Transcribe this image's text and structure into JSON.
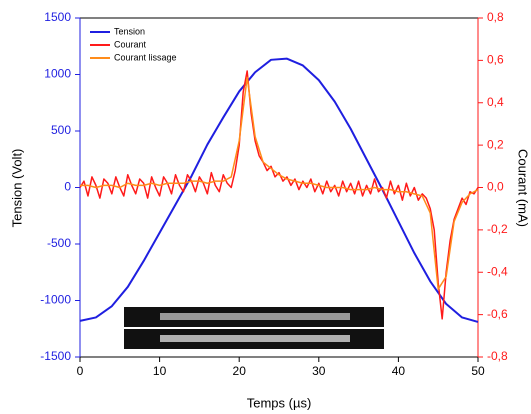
{
  "chart_data": {
    "type": "line",
    "xlabel": "Temps (µs)",
    "ylabel": "Tension (Volt)",
    "y2label": "Courant (mA)",
    "xlim": [
      0,
      50
    ],
    "xticks": [
      0,
      10,
      20,
      30,
      40,
      50
    ],
    "ylim": [
      -1500,
      1500
    ],
    "yticks": [
      -1500,
      -1000,
      -500,
      0,
      500,
      1000,
      1500
    ],
    "y2lim": [
      -0.8,
      0.8
    ],
    "y2ticks": [
      {
        "value": -0.8,
        "label": "-0,8"
      },
      {
        "value": -0.6,
        "label": "-0,6"
      },
      {
        "value": -0.4,
        "label": "-0,4"
      },
      {
        "value": -0.2,
        "label": "-0,2"
      },
      {
        "value": 0,
        "label": "0,0"
      },
      {
        "value": 0.2,
        "label": "0,2"
      },
      {
        "value": 0.4,
        "label": "0,4"
      },
      {
        "value": 0.6,
        "label": "0,6"
      },
      {
        "value": 0.8,
        "label": "0,8"
      }
    ],
    "legend": "top-left",
    "series": [
      {
        "name": "Tension",
        "color": "#1f1fe0",
        "x": [
          0,
          2,
          4,
          6,
          8,
          10,
          12,
          14,
          16,
          18,
          20,
          22,
          24,
          26,
          28,
          30,
          32,
          34,
          36,
          38,
          40,
          42,
          44,
          46,
          48,
          50
        ],
        "values": [
          -1180,
          -1150,
          -1050,
          -880,
          -650,
          -400,
          -150,
          100,
          380,
          620,
          850,
          1020,
          1130,
          1140,
          1080,
          950,
          760,
          520,
          250,
          -20,
          -300,
          -580,
          -830,
          -1030,
          -1150,
          -1190
        ]
      },
      {
        "name": "Courant",
        "color": "#ff1a1a",
        "axis": "y2",
        "x": [
          0,
          0.5,
          1,
          1.5,
          2,
          2.5,
          3,
          3.5,
          4,
          4.5,
          5,
          5.5,
          6,
          6.5,
          7,
          7.5,
          8,
          8.5,
          9,
          9.5,
          10,
          10.5,
          11,
          11.5,
          12,
          12.5,
          13,
          13.5,
          14,
          14.5,
          15,
          15.5,
          16,
          16.5,
          17,
          17.5,
          18,
          18.5,
          19,
          19.5,
          20,
          20.5,
          21,
          21.5,
          22,
          22.5,
          23,
          23.5,
          24,
          24.5,
          25,
          25.5,
          26,
          26.5,
          27,
          27.5,
          28,
          28.5,
          29,
          29.5,
          30,
          30.5,
          31,
          31.5,
          32,
          32.5,
          33,
          33.5,
          34,
          34.5,
          35,
          35.5,
          36,
          36.5,
          37,
          37.5,
          38,
          38.5,
          39,
          39.5,
          40,
          40.5,
          41,
          41.5,
          42,
          42.5,
          43,
          43.5,
          44,
          44.5,
          45,
          45.5,
          46,
          46.5,
          47,
          47.5,
          48,
          48.5,
          49,
          49.5,
          50
        ],
        "values": [
          0,
          0.03,
          -0.04,
          0.05,
          0.01,
          -0.05,
          0.04,
          0.02,
          -0.03,
          0.05,
          0,
          -0.04,
          0.06,
          0.01,
          -0.03,
          0.04,
          0.02,
          -0.05,
          0.05,
          0,
          -0.04,
          0.05,
          0.02,
          -0.03,
          0.06,
          0.01,
          -0.02,
          0.06,
          0.03,
          -0.02,
          0.05,
          0.02,
          -0.03,
          0.07,
          0.01,
          -0.02,
          0.06,
          0.02,
          0,
          0.08,
          0.2,
          0.45,
          0.55,
          0.35,
          0.22,
          0.15,
          0.12,
          0.08,
          0.1,
          0.05,
          0.07,
          0.03,
          0.05,
          0.01,
          0.04,
          -0.01,
          0.03,
          0,
          0.04,
          -0.02,
          0.02,
          -0.03,
          0.03,
          -0.02,
          0.01,
          -0.04,
          0.03,
          -0.02,
          0.02,
          -0.03,
          0.03,
          -0.04,
          0.01,
          -0.03,
          0.04,
          -0.02,
          0,
          -0.05,
          0.03,
          -0.03,
          0.01,
          -0.06,
          0.02,
          -0.04,
          0,
          -0.06,
          -0.03,
          -0.05,
          -0.1,
          -0.2,
          -0.45,
          -0.62,
          -0.4,
          -0.25,
          -0.15,
          -0.1,
          -0.05,
          -0.08,
          -0.02,
          -0.03,
          0
        ]
      },
      {
        "name": "Courant lissage",
        "color": "#ff8c1a",
        "axis": "y2",
        "x": [
          0,
          1,
          2,
          3,
          4,
          5,
          6,
          7,
          8,
          9,
          10,
          11,
          12,
          13,
          14,
          15,
          16,
          17,
          18,
          19,
          20,
          21,
          22,
          23,
          24,
          25,
          26,
          27,
          28,
          29,
          30,
          31,
          32,
          33,
          34,
          35,
          36,
          37,
          38,
          39,
          40,
          41,
          42,
          43,
          44,
          45,
          46,
          47,
          48,
          49,
          50
        ],
        "values": [
          0.01,
          0.01,
          0,
          0.01,
          0.01,
          0,
          0.02,
          0.01,
          0.01,
          0.02,
          0.01,
          0.02,
          0.02,
          0.02,
          0.03,
          0.03,
          0.02,
          0.03,
          0.03,
          0.05,
          0.22,
          0.52,
          0.24,
          0.12,
          0.09,
          0.06,
          0.04,
          0.03,
          0.02,
          0.02,
          0.01,
          0,
          0,
          0,
          -0.01,
          -0.01,
          -0.01,
          0,
          -0.01,
          -0.01,
          -0.02,
          -0.02,
          -0.03,
          -0.04,
          -0.12,
          -0.48,
          -0.42,
          -0.16,
          -0.07,
          -0.03,
          -0.01
        ]
      }
    ]
  }
}
